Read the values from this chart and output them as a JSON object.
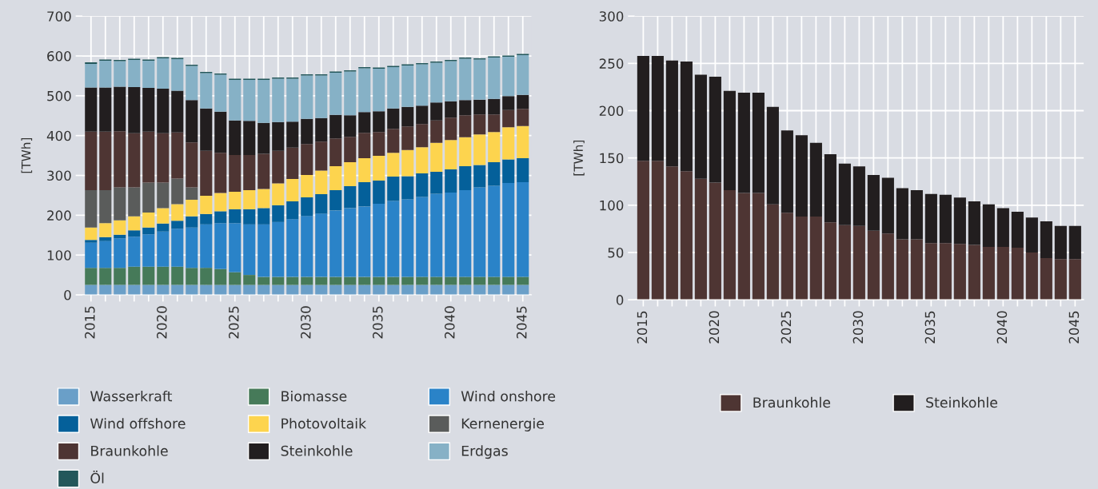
{
  "chart_data": [
    {
      "type": "bar",
      "stacked": true,
      "ylabel": "[TWh]",
      "ylim": [
        0,
        700
      ],
      "yticks": [
        0,
        100,
        200,
        300,
        400,
        500,
        600,
        700
      ],
      "grid": true,
      "legend": "bottom",
      "categories": [
        "2015",
        null,
        null,
        null,
        null,
        "2020",
        null,
        null,
        null,
        null,
        "2025",
        null,
        null,
        null,
        null,
        "2030",
        null,
        null,
        null,
        null,
        "2035",
        null,
        null,
        null,
        null,
        "2040",
        null,
        null,
        null,
        null,
        "2045"
      ],
      "series": [
        {
          "name": "Wasserkraft",
          "color": "#6a9fc8",
          "values": [
            25,
            25,
            25,
            25,
            25,
            25,
            25,
            25,
            25,
            25,
            25,
            25,
            25,
            25,
            25,
            25,
            25,
            25,
            25,
            25,
            25,
            25,
            25,
            25,
            25,
            25,
            25,
            25,
            25,
            25,
            25
          ]
        },
        {
          "name": "Biomasse",
          "color": "#467a59",
          "values": [
            43,
            43,
            43,
            46,
            46,
            46,
            46,
            43,
            43,
            40,
            32,
            25,
            20,
            20,
            20,
            20,
            20,
            20,
            20,
            20,
            20,
            20,
            20,
            20,
            20,
            20,
            20,
            20,
            20,
            20,
            20
          ]
        },
        {
          "name": "Wind onshore",
          "color": "#2a83c8",
          "values": [
            63,
            67,
            74,
            75,
            81,
            88,
            95,
            101,
            109,
            115,
            123,
            127,
            132,
            138,
            145,
            153,
            159,
            167,
            173,
            177,
            184,
            191,
            195,
            201,
            209,
            212,
            218,
            225,
            229,
            236,
            238
          ]
        },
        {
          "name": "Wind offshore",
          "color": "#04609a",
          "values": [
            7,
            10,
            9,
            16,
            17,
            20,
            20,
            28,
            26,
            30,
            35,
            38,
            41,
            42,
            45,
            47,
            49,
            51,
            55,
            61,
            58,
            61,
            58,
            59,
            55,
            58,
            60,
            56,
            59,
            59,
            60
          ]
        },
        {
          "name": "Photovoltaik",
          "color": "#fdd44e",
          "values": [
            31,
            35,
            36,
            35,
            38,
            39,
            42,
            42,
            46,
            46,
            44,
            48,
            48,
            55,
            56,
            56,
            59,
            60,
            60,
            60,
            62,
            60,
            66,
            66,
            73,
            74,
            73,
            77,
            76,
            81,
            81
          ]
        },
        {
          "name": "Kernenergie",
          "color": "#5a5c5b",
          "values": [
            94,
            83,
            83,
            73,
            75,
            64,
            64,
            31,
            0,
            0,
            0,
            0,
            0,
            0,
            0,
            0,
            0,
            0,
            0,
            0,
            0,
            0,
            0,
            0,
            0,
            0,
            0,
            0,
            0,
            0,
            0
          ]
        },
        {
          "name": "Braunkohle",
          "color": "#4e3533",
          "values": [
            147,
            147,
            141,
            136,
            128,
            124,
            116,
            113,
            113,
            101,
            92,
            88,
            88,
            82,
            79,
            78,
            73,
            70,
            64,
            64,
            60,
            60,
            59,
            58,
            56,
            56,
            55,
            50,
            44,
            43,
            43
          ]
        },
        {
          "name": "Steinkohle",
          "color": "#221e1f",
          "values": [
            111,
            111,
            112,
            116,
            110,
            112,
            105,
            106,
            106,
            103,
            87,
            86,
            78,
            72,
            65,
            63,
            59,
            59,
            54,
            52,
            52,
            51,
            49,
            46,
            45,
            41,
            38,
            37,
            39,
            35,
            35
          ]
        },
        {
          "name": "Erdgas",
          "color": "#86b1c6",
          "values": [
            59,
            67,
            64,
            68,
            68,
            76,
            79,
            86,
            89,
            93,
            102,
            103,
            108,
            109,
            108,
            109,
            107,
            106,
            110,
            110,
            107,
            104,
            104,
            104,
            100,
            101,
            104,
            101,
            104,
            99,
            100
          ]
        },
        {
          "name": "Öl",
          "color": "#23575a",
          "values": [
            4,
            3,
            3,
            3,
            3,
            3,
            3,
            3,
            3,
            3,
            3,
            3,
            3,
            3,
            3,
            3,
            3,
            3,
            3,
            3,
            3,
            3,
            3,
            3,
            3,
            3,
            3,
            3,
            3,
            3,
            3
          ]
        }
      ]
    },
    {
      "type": "bar",
      "stacked": true,
      "ylabel": "[TWh]",
      "ylim": [
        0,
        300
      ],
      "yticks": [
        0,
        50,
        100,
        150,
        200,
        250,
        300
      ],
      "grid": true,
      "legend": "bottom",
      "categories": [
        "2015",
        null,
        null,
        null,
        null,
        "2020",
        null,
        null,
        null,
        null,
        "2025",
        null,
        null,
        null,
        null,
        "2030",
        null,
        null,
        null,
        null,
        "2035",
        null,
        null,
        null,
        null,
        "2040",
        null,
        null,
        null,
        null,
        "2045"
      ],
      "series": [
        {
          "name": "Braunkohle",
          "color": "#4e3533",
          "values": [
            147,
            147,
            141,
            136,
            128,
            124,
            116,
            113,
            113,
            101,
            92,
            88,
            88,
            82,
            79,
            78,
            73,
            70,
            64,
            64,
            60,
            60,
            59,
            58,
            56,
            56,
            55,
            50,
            44,
            43,
            43
          ]
        },
        {
          "name": "Steinkohle",
          "color": "#221e1f",
          "values": [
            111,
            111,
            112,
            116,
            110,
            112,
            105,
            106,
            106,
            103,
            87,
            86,
            78,
            72,
            65,
            63,
            59,
            59,
            54,
            52,
            52,
            51,
            49,
            46,
            45,
            41,
            38,
            37,
            39,
            35,
            35
          ]
        }
      ]
    }
  ]
}
